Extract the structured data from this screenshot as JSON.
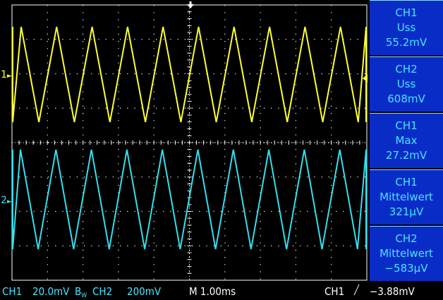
{
  "channels": {
    "ch1": {
      "marker": "1",
      "color": "#ffff33"
    },
    "ch2": {
      "marker": "2",
      "color": "#33e0ee"
    }
  },
  "measurements": [
    {
      "channel": "CH1",
      "type": "Uss",
      "value": "55.2mV"
    },
    {
      "channel": "CH2",
      "type": "Uss",
      "value": "608mV"
    },
    {
      "channel": "CH1",
      "type": "Max",
      "value": "27.2mV"
    },
    {
      "channel": "CH1",
      "type": "Mittelwert",
      "value": "321µV"
    },
    {
      "channel": "CH2",
      "type": "Mittelwert",
      "value": "−583µV"
    }
  ],
  "status": {
    "ch1_label": "CH1",
    "ch1_scale": "20.0mV",
    "bw_label": "B",
    "bw_sub": "W",
    "ch2_label": "CH2",
    "ch2_scale": "200mV",
    "timebase": "M 1.00ms",
    "trigger_source": "CH1",
    "trigger_slope": "╱",
    "trigger_level": "−3.88mV"
  },
  "waveforms": {
    "type": "triangle",
    "cycles_on_screen": 10,
    "grid": {
      "divisions_x": 10,
      "divisions_y": 8,
      "grid_color": "#ffffff"
    }
  }
}
